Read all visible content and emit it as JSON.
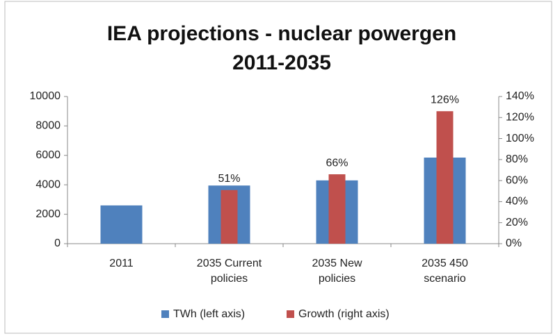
{
  "chart_data": {
    "type": "bar",
    "title": "IEA projections - nuclear powergen 2011-2035",
    "categories": [
      "2011",
      "2035 Current policies",
      "2035 New policies",
      "2035 450 scenario"
    ],
    "series": [
      {
        "name": "TWh (left axis)",
        "color": "#4f81bd",
        "values": [
          2600,
          3950,
          4300,
          5850
        ]
      },
      {
        "name": "Growth (right axis)",
        "color": "#c0504d",
        "axis": "y2",
        "values": [
          null,
          51,
          66,
          126
        ],
        "value_labels": [
          null,
          "51%",
          "66%",
          "126%"
        ]
      }
    ],
    "ylim": [
      0,
      10000
    ],
    "yticks": [
      0,
      2000,
      4000,
      6000,
      8000,
      10000
    ],
    "y2lim": [
      0,
      140
    ],
    "y2ticks": [
      {
        "value": 0,
        "label": "0%"
      },
      {
        "value": 20,
        "label": "20%"
      },
      {
        "value": 40,
        "label": "40%"
      },
      {
        "value": 60,
        "label": "60%"
      },
      {
        "value": 80,
        "label": "80%"
      },
      {
        "value": 100,
        "label": "100%"
      },
      {
        "value": 120,
        "label": "120%"
      },
      {
        "value": 140,
        "label": "140%"
      }
    ],
    "grid": false,
    "legend": "bottom"
  }
}
